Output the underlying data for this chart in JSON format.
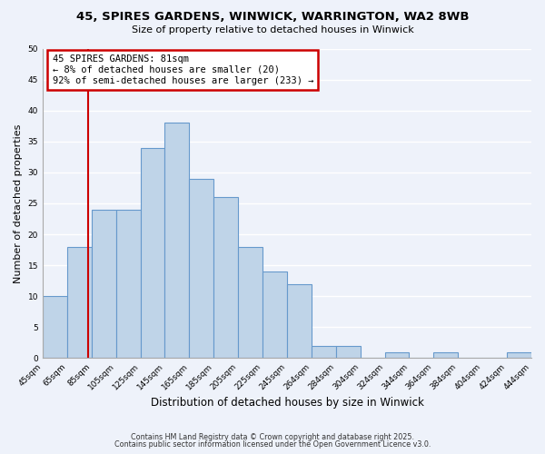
{
  "title": "45, SPIRES GARDENS, WINWICK, WARRINGTON, WA2 8WB",
  "subtitle": "Size of property relative to detached houses in Winwick",
  "xlabel": "Distribution of detached houses by size in Winwick",
  "ylabel": "Number of detached properties",
  "bar_color": "#bfd4e8",
  "bar_edge_color": "#6699cc",
  "background_color": "#eef2fa",
  "grid_color": "#ffffff",
  "counts": [
    10,
    18,
    24,
    24,
    34,
    38,
    29,
    26,
    18,
    14,
    12,
    2,
    2,
    0,
    1,
    0,
    1,
    0,
    0,
    1
  ],
  "tick_labels": [
    "45sqm",
    "65sqm",
    "85sqm",
    "105sqm",
    "125sqm",
    "145sqm",
    "165sqm",
    "185sqm",
    "205sqm",
    "225sqm",
    "245sqm",
    "264sqm",
    "284sqm",
    "304sqm",
    "324sqm",
    "344sqm",
    "364sqm",
    "384sqm",
    "404sqm",
    "424sqm",
    "444sqm"
  ],
  "vline_bin": 1.85,
  "vline_color": "#cc0000",
  "annotation_title": "45 SPIRES GARDENS: 81sqm",
  "annotation_line2": "← 8% of detached houses are smaller (20)",
  "annotation_line3": "92% of semi-detached houses are larger (233) →",
  "annotation_box_color": "#ffffff",
  "annotation_box_edge": "#cc0000",
  "footer1": "Contains HM Land Registry data © Crown copyright and database right 2025.",
  "footer2": "Contains public sector information licensed under the Open Government Licence v3.0.",
  "ylim": [
    0,
    50
  ],
  "yticks": [
    0,
    5,
    10,
    15,
    20,
    25,
    30,
    35,
    40,
    45,
    50
  ]
}
